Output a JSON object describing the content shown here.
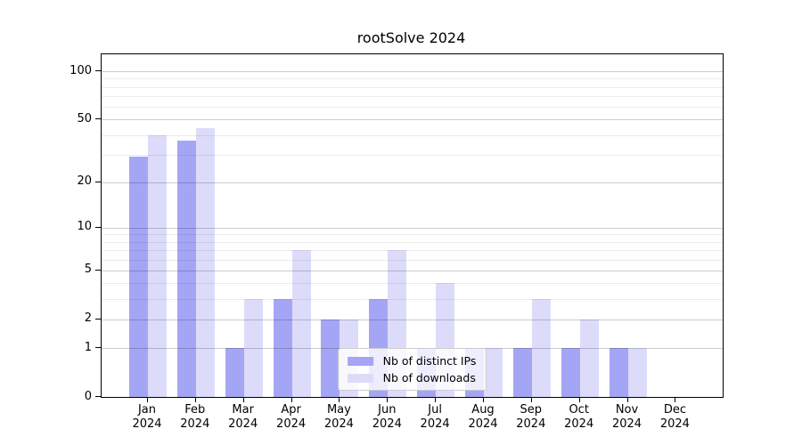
{
  "title": "rootSolve 2024",
  "chart_data": {
    "type": "bar",
    "title": "rootSolve 2024",
    "categories": [
      "Jan 2024",
      "Feb 2024",
      "Mar 2024",
      "Apr 2024",
      "May 2024",
      "Jun 2024",
      "Jul 2024",
      "Aug 2024",
      "Sep 2024",
      "Oct 2024",
      "Nov 2024",
      "Dec 2024"
    ],
    "series": [
      {
        "name": "Nb of distinct IPs",
        "key": "ips",
        "color": "#a5a5f6",
        "values": [
          29,
          37,
          1,
          3,
          2,
          3,
          1,
          1,
          1,
          1,
          1,
          0
        ]
      },
      {
        "name": "Nb of downloads",
        "key": "downloads",
        "color": "#dcdcfa",
        "values": [
          40,
          44,
          3,
          7,
          2,
          7,
          4,
          1,
          3,
          2,
          1,
          0
        ]
      }
    ],
    "xlabel": "",
    "ylabel": "",
    "yscale": "log1p",
    "ylim": [
      0,
      127.5
    ],
    "y_major_ticks": [
      0,
      1,
      2,
      5,
      10,
      20,
      50,
      100
    ],
    "y_minor_gridlines": [
      3,
      4,
      6,
      7,
      8,
      9,
      30,
      40,
      60,
      70,
      80,
      90
    ],
    "grid": "horizontal, gridlines drawn above bars",
    "legend_position": "lower center"
  },
  "colors": {
    "background": "#ffffff",
    "axis": "#000000",
    "text": "#000000",
    "bar_distinct_ips": "#a5a5f6",
    "bar_downloads": "#dcdcfa",
    "grid_major": "rgba(0,0,0,0.20)",
    "grid_minor": "rgba(0,0,0,0.08)",
    "legend_border": "#cccccc",
    "legend_background": "rgba(255,255,255,0.8)"
  }
}
